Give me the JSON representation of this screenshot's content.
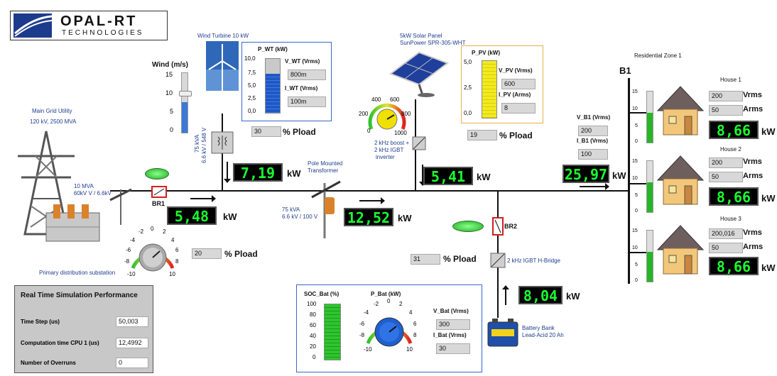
{
  "logo": {
    "line1": "OPAL-RT",
    "line2": "TECHNOLOGIES"
  },
  "main_grid": {
    "title": "Main Grid Utility",
    "rating": "120 kV, 2500 MVA"
  },
  "transformer_main": {
    "rating1": "10 MVA",
    "rating2": "60kV V / 6.6kV"
  },
  "substation_label": "Primary distribution substation",
  "br1": {
    "label": "BR1"
  },
  "grid_power": {
    "value": "5,48",
    "unit": "kW"
  },
  "grid_pload": {
    "value": "20",
    "unit": "% Pload"
  },
  "grid_knob": {
    "ticks": [
      "-2",
      "0",
      "2",
      "-4",
      "4",
      "-6",
      "6",
      "-8",
      "8",
      "-10",
      "10"
    ]
  },
  "wind": {
    "title": "Wind (m/s)",
    "ticks": [
      "15",
      "10",
      "5",
      "0"
    ],
    "level": 0.5,
    "turbine_label": "Wind Turbine 10 kW",
    "transformer_label1": "75 kVA",
    "transformer_label2": "6.6 kV / 548 V",
    "p_title": "P_WT  (kW)",
    "p_ticks": [
      "10,0",
      "7,5",
      "5,0",
      "2,5",
      "0,0"
    ],
    "v_label": "V_WT (Vrms)",
    "v_value": "800m",
    "i_label": "I_WT (Vrms)",
    "i_value": "100m",
    "pload_value": "30",
    "pload_unit": "% Pload",
    "power_value": "7,19",
    "power_unit": "kW"
  },
  "pole_transformer": {
    "title1": "Pole Mounted",
    "title2": "Transformer",
    "rating1": "75 kVA",
    "rating2": "6.6 kV / 100 V"
  },
  "feeder_power": {
    "value": "12,52",
    "unit": "kW"
  },
  "solar": {
    "title1": "5kW Solar Panel",
    "title2": "SunPower SPR-305-WHT",
    "dial_ticks": [
      "400",
      "600",
      "200",
      "800",
      "0",
      "1000"
    ],
    "inverter1": "2 kHz boost +",
    "inverter2": "2 kHz IGBT",
    "inverter3": "inverter",
    "p_title": "P_PV  (kW)",
    "p_ticks": [
      "5,0",
      "2,5",
      "0,0"
    ],
    "v_label": "V_PV (Vrms)",
    "v_value": "600",
    "i_label": "I_PV (Arms)",
    "i_value": "8",
    "pload_value": "19",
    "pload_unit": "% Pload",
    "power_value": "5,41",
    "power_unit": "kW"
  },
  "br2": {
    "label": "BR2"
  },
  "battery": {
    "pload_value": "31",
    "pload_unit": "% Pload",
    "bridge_label": "2 kHz IGBT H-Bridge",
    "power_value": "8,04",
    "power_unit": "kW",
    "bank_label1": "Battery Bank",
    "bank_label2": "Lead-Acid 20 Ah",
    "soc_title": "SOC_Bat  (%)",
    "soc_ticks": [
      "100",
      "80",
      "60",
      "40",
      "20",
      "0"
    ],
    "p_title": "P_Bat  (kW)",
    "knob_ticks": [
      "-2",
      "0",
      "2",
      "-4",
      "4",
      "-6",
      "6",
      "-8",
      "8",
      "-10",
      "10"
    ],
    "v_label": "V_Bat (Vrms)",
    "v_value": "300",
    "i_label": "I_Bat (Vrms)",
    "i_value": "30"
  },
  "b1": {
    "title": "B1",
    "zone": "Residential Zone 1",
    "v_label": "V_B1 (Vrms)",
    "v_value": "200",
    "i_label": "I_B1 (Vrms)",
    "i_value": "100",
    "power_value": "25,97",
    "power_unit": "kW"
  },
  "houses": [
    {
      "name": "House 1",
      "vrms": "200",
      "arms": "50",
      "power": "8,66",
      "unit": "kW",
      "v_unit": "Vrms",
      "a_unit": "Arms"
    },
    {
      "name": "House 2",
      "vrms": "200",
      "arms": "50",
      "power": "8,66",
      "unit": "kW",
      "v_unit": "Vrms",
      "a_unit": "Arms"
    },
    {
      "name": "House 3",
      "vrms": "200,016",
      "arms": "50",
      "power": "8,66",
      "unit": "kW",
      "v_unit": "Vrms",
      "a_unit": "Arms"
    }
  ],
  "house_gauge_ticks": [
    "15",
    "10",
    "5",
    "0"
  ],
  "perf": {
    "title": "Real Time Simulation Performance",
    "timestep_label": "Time Step (us)",
    "timestep_value": "50,003",
    "cpu_label": "Computation time CPU 1 (us)",
    "cpu_value": "12,4992",
    "overruns_label": "Number of Overruns",
    "overruns_value": "0"
  }
}
